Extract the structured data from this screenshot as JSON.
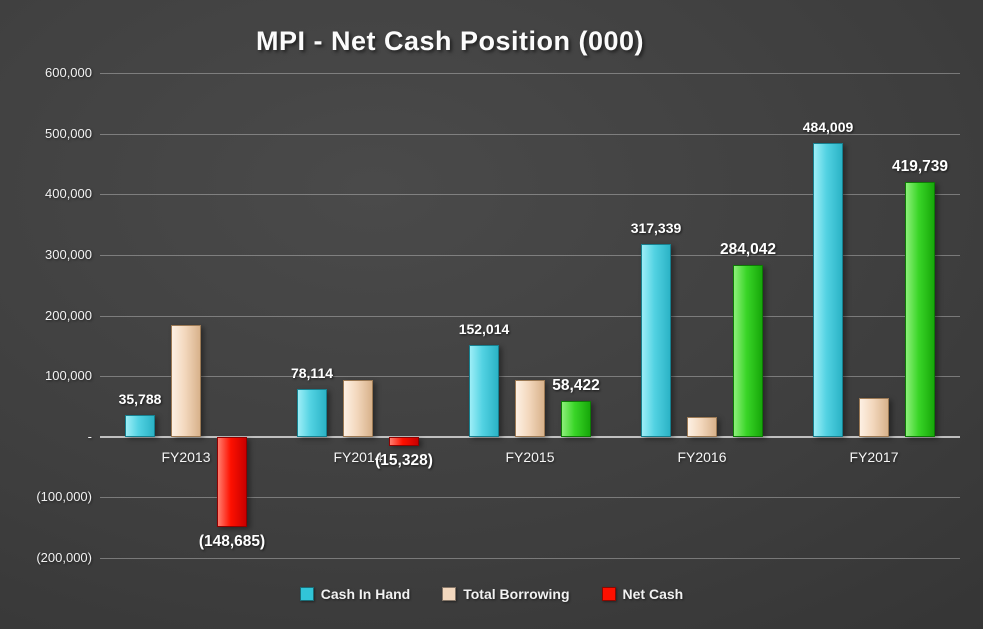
{
  "chart_data": {
    "type": "bar",
    "title": "MPI - Net Cash Position (000)",
    "categories": [
      "FY2013",
      "FY2014",
      "FY2015",
      "FY2016",
      "FY2017"
    ],
    "series": [
      {
        "name": "Cash In Hand",
        "color": "#52d2e2",
        "values": [
          35788,
          78114,
          152014,
          317339,
          484009
        ],
        "labels": [
          "35,788",
          "78,114",
          "152,014",
          "317,339",
          "484,009"
        ]
      },
      {
        "name": "Total Borrowing",
        "color": "#f3d8be",
        "values": [
          184473,
          93442,
          93592,
          33297,
          64270
        ],
        "labels": [
          "",
          "",
          "",
          "",
          ""
        ]
      },
      {
        "name": "Net Cash",
        "color_positive": "#39d527",
        "color_negative": "#fe1000",
        "values": [
          -148685,
          -15328,
          58422,
          284042,
          419739
        ],
        "labels": [
          "(148,685)",
          "(15,328)",
          "58,422",
          "284,042",
          "419,739"
        ]
      }
    ],
    "y_axis": {
      "min": -200000,
      "max": 600000,
      "step": 100000,
      "tick_labels": [
        "600,000",
        "500,000",
        "400,000",
        "300,000",
        "200,000",
        "100,000",
        "-",
        "(100,000)",
        "(200,000)"
      ]
    },
    "grid": true,
    "legend_position": "bottom",
    "legend": [
      {
        "label": "Cash In Hand",
        "color": "#31c5d8"
      },
      {
        "label": "Total Borrowing",
        "color": "#f3d8be"
      },
      {
        "label": "Net Cash",
        "color": "#fe1000"
      }
    ]
  }
}
